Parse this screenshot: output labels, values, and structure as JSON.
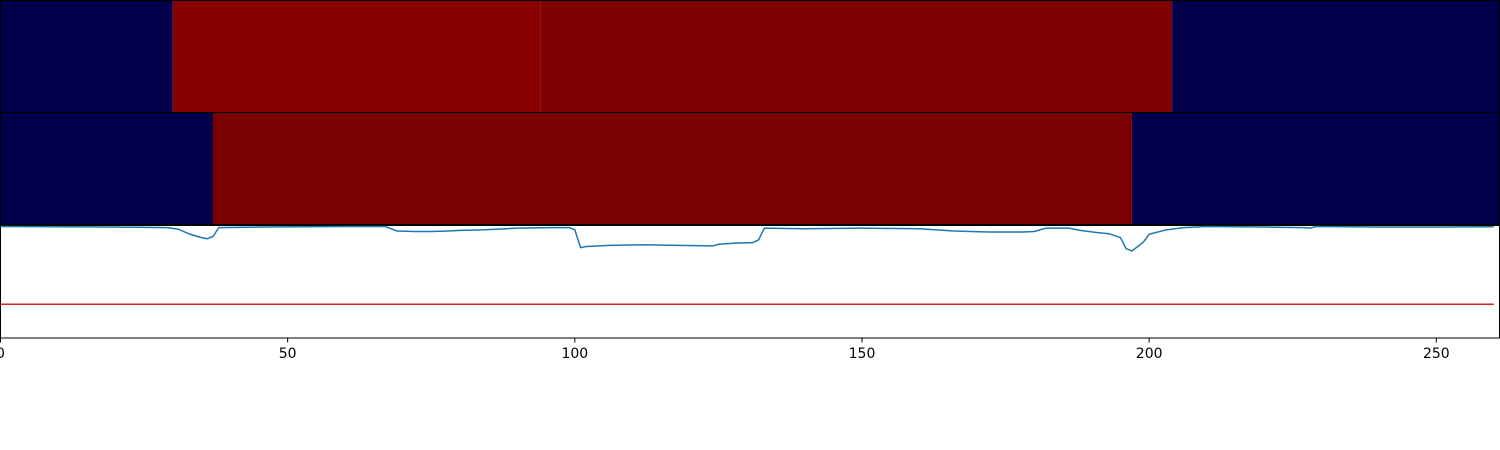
{
  "chart_data": {
    "type": "heatmap",
    "title": "",
    "xlabel": "",
    "ylabel": "",
    "xlim": [
      0,
      261
    ],
    "xticks": [
      {
        "value": 0,
        "label": "0"
      },
      {
        "value": 50,
        "label": "50"
      },
      {
        "value": 100,
        "label": "100"
      },
      {
        "value": 150,
        "label": "150"
      },
      {
        "value": 200,
        "label": "200"
      },
      {
        "value": 250,
        "label": "250"
      }
    ],
    "heat_rows": [
      {
        "segments": [
          {
            "start": 0,
            "end": 30,
            "color": "#00004c"
          },
          {
            "start": 30,
            "end": 94,
            "color": "#880000"
          },
          {
            "start": 94,
            "end": 204,
            "color": "#7f0000"
          },
          {
            "start": 204,
            "end": 261,
            "color": "#00004c"
          }
        ]
      },
      {
        "segments": [
          {
            "start": 0,
            "end": 37,
            "color": "#00004c"
          },
          {
            "start": 37,
            "end": 197,
            "color": "#7b0000"
          },
          {
            "start": 197,
            "end": 261,
            "color": "#00004c"
          }
        ]
      }
    ],
    "signal": {
      "ylim": [
        0,
        1
      ],
      "color": "#1f77b4",
      "x": [
        0,
        20,
        29,
        31,
        33,
        35,
        36,
        37,
        38,
        45,
        60,
        67,
        68,
        69,
        72,
        75,
        78,
        80,
        84,
        90,
        96,
        99,
        100,
        101,
        102,
        106,
        112,
        118,
        124,
        125,
        128,
        131,
        132,
        133,
        140,
        150,
        160,
        166,
        172,
        178,
        180,
        182,
        186,
        188,
        191,
        193,
        195,
        196,
        197,
        198,
        199,
        200,
        203,
        206,
        210,
        220,
        227,
        228,
        229,
        240,
        250,
        260
      ],
      "y": [
        1.0,
        0.995,
        0.99,
        0.975,
        0.93,
        0.9,
        0.89,
        0.91,
        0.99,
        0.995,
        1.0,
        1.0,
        0.98,
        0.96,
        0.955,
        0.955,
        0.96,
        0.965,
        0.97,
        0.985,
        0.99,
        0.99,
        0.97,
        0.81,
        0.82,
        0.83,
        0.835,
        0.83,
        0.825,
        0.84,
        0.85,
        0.855,
        0.88,
        0.985,
        0.98,
        0.985,
        0.98,
        0.96,
        0.95,
        0.95,
        0.955,
        0.985,
        0.985,
        0.965,
        0.945,
        0.935,
        0.9,
        0.8,
        0.78,
        0.82,
        0.86,
        0.93,
        0.97,
        0.99,
        1.0,
        0.995,
        0.99,
        0.985,
        1.0,
        0.995,
        0.995,
        0.998
      ]
    },
    "threshold": {
      "y": 0.3,
      "color": "#d62728"
    }
  }
}
